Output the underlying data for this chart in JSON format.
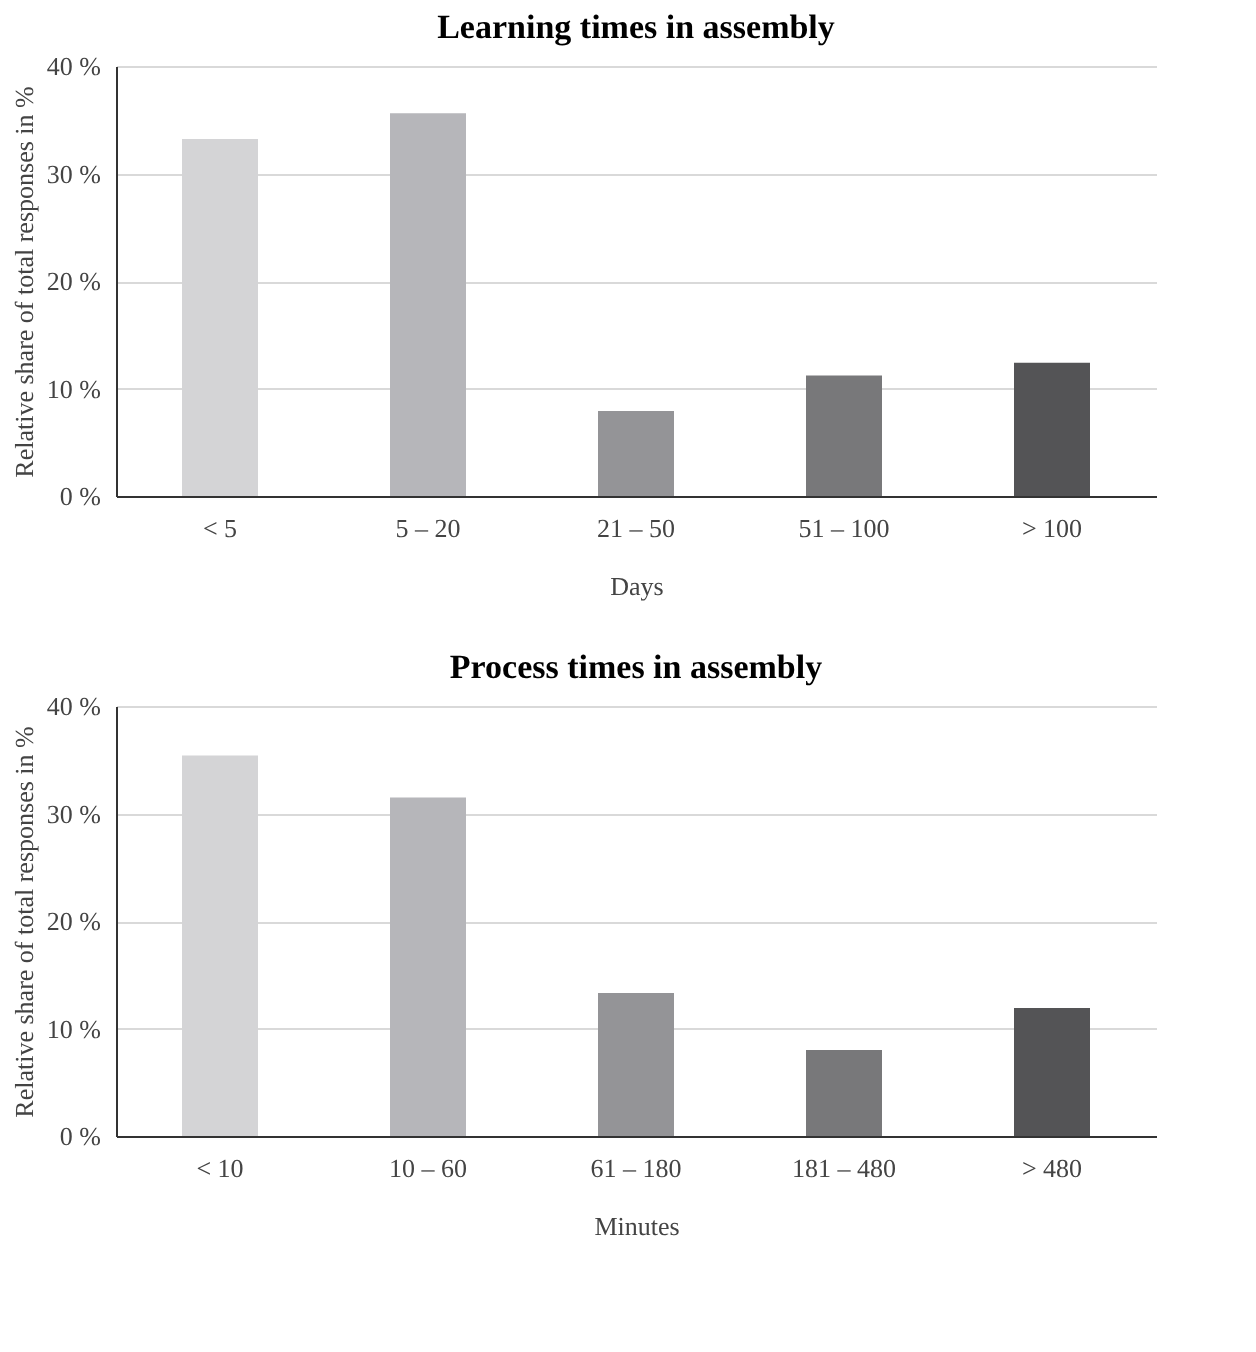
{
  "chart_data": [
    {
      "type": "bar",
      "title": "Learning times in assembly",
      "xlabel": "Days",
      "ylabel": "Relative share of total responses in %",
      "categories": [
        "< 5",
        "5 – 20",
        "21 – 50",
        "51 – 100",
        "> 100"
      ],
      "values": [
        33.2,
        35.6,
        7.9,
        11.2,
        12.4
      ],
      "colors": [
        "#d4d4d6",
        "#b6b6ba",
        "#949497",
        "#78787a",
        "#545456"
      ],
      "ylim": [
        0,
        40
      ],
      "yticks": [
        {
          "value": 0,
          "label": "0 %"
        },
        {
          "value": 10,
          "label": "10 %"
        },
        {
          "value": 20,
          "label": "20 %"
        },
        {
          "value": 30,
          "label": "30 %"
        },
        {
          "value": 40,
          "label": "40 %"
        }
      ],
      "grid": "y"
    },
    {
      "type": "bar",
      "title": "Process times in assembly",
      "xlabel": "Minutes",
      "ylabel": "Relative share of total responses in %",
      "categories": [
        "< 10",
        "10 – 60",
        "61 – 180",
        "181 – 480",
        "> 480"
      ],
      "values": [
        35.4,
        31.5,
        13.3,
        8.0,
        11.9
      ],
      "colors": [
        "#d4d4d6",
        "#b6b6ba",
        "#949497",
        "#78787a",
        "#545456"
      ],
      "ylim": [
        0,
        40
      ],
      "yticks": [
        {
          "value": 0,
          "label": "0 %"
        },
        {
          "value": 10,
          "label": "10 %"
        },
        {
          "value": 20,
          "label": "20 %"
        },
        {
          "value": 30,
          "label": "30 %"
        },
        {
          "value": 40,
          "label": "40 %"
        }
      ],
      "grid": "y"
    }
  ]
}
